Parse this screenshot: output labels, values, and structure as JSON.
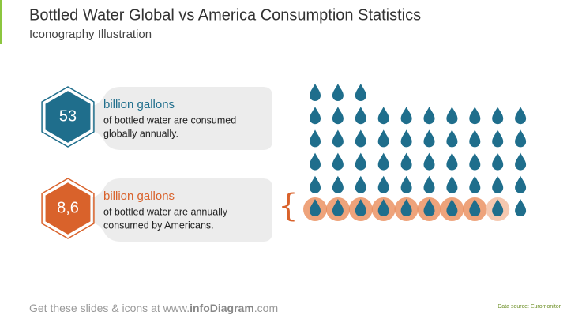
{
  "header": {
    "title": "Bottled Water Global vs America Consumption Statistics",
    "subtitle": "Iconography Illustration"
  },
  "stats": [
    {
      "value": "53",
      "unit": "billion gallons",
      "description_lines": [
        "of bottled water are consumed",
        "globally annually."
      ],
      "color": "#1f6e8c"
    },
    {
      "value": "8,6",
      "unit": "billion gallons",
      "description_lines": [
        "of bottled water are annually",
        "consumed by Americans."
      ],
      "color": "#d9622b"
    }
  ],
  "pictogram": {
    "drops": 53,
    "highlighted": 8.6,
    "drop_color": "#1f6e8c",
    "highlight_color": "#e8844f"
  },
  "footer": {
    "prefix": "Get these slides & icons at www.",
    "brand": "infoDiagram",
    "suffix": ".com",
    "source": "Data source: Euromonitor"
  }
}
